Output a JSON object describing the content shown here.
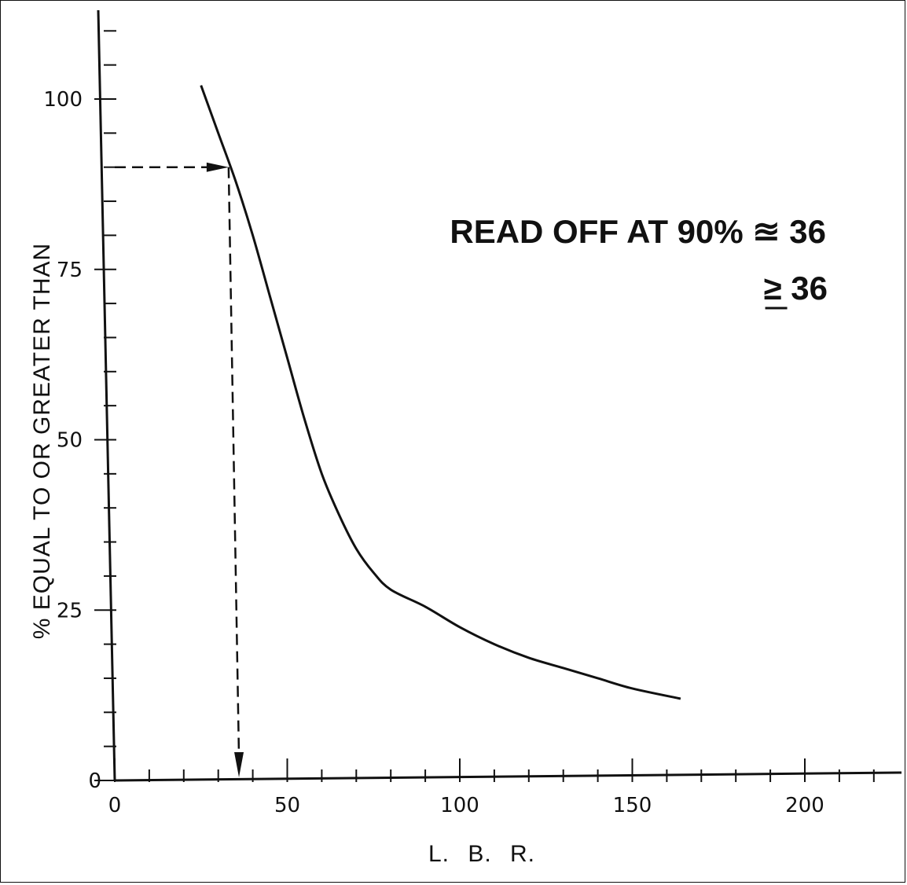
{
  "chart_data": {
    "type": "line",
    "title": "",
    "xlabel": "L. B. R.",
    "ylabel": "% EQUAL TO OR GREATER THAN",
    "xlim": [
      0,
      230
    ],
    "ylim": [
      0,
      115
    ],
    "xticks_major": [
      0,
      50,
      100,
      150,
      200
    ],
    "xtick_labels": [
      "0",
      "50",
      "100",
      "150",
      "200"
    ],
    "xticks_minor_step": 10,
    "yticks_major": [
      0,
      25,
      50,
      75,
      100
    ],
    "ytick_labels": [
      "0",
      "25",
      "50",
      "75",
      "100"
    ],
    "yticks_minor_step": 5,
    "grid": false,
    "series": [
      {
        "x": [
          25,
          30,
          35,
          40,
          45,
          50,
          55,
          60,
          65,
          70,
          75,
          80,
          90,
          100,
          110,
          120,
          130,
          140,
          150,
          164
        ],
        "y": [
          102,
          95,
          88,
          80,
          71,
          62,
          53,
          45,
          39,
          34,
          30.5,
          28,
          25.5,
          22.5,
          20,
          18,
          16.5,
          15,
          13.5,
          12
        ]
      }
    ],
    "reference": {
      "y": 90,
      "x": 36
    },
    "annotations": [
      "READ OFF AT 90% ≊ 36",
      "≥ 36"
    ]
  }
}
